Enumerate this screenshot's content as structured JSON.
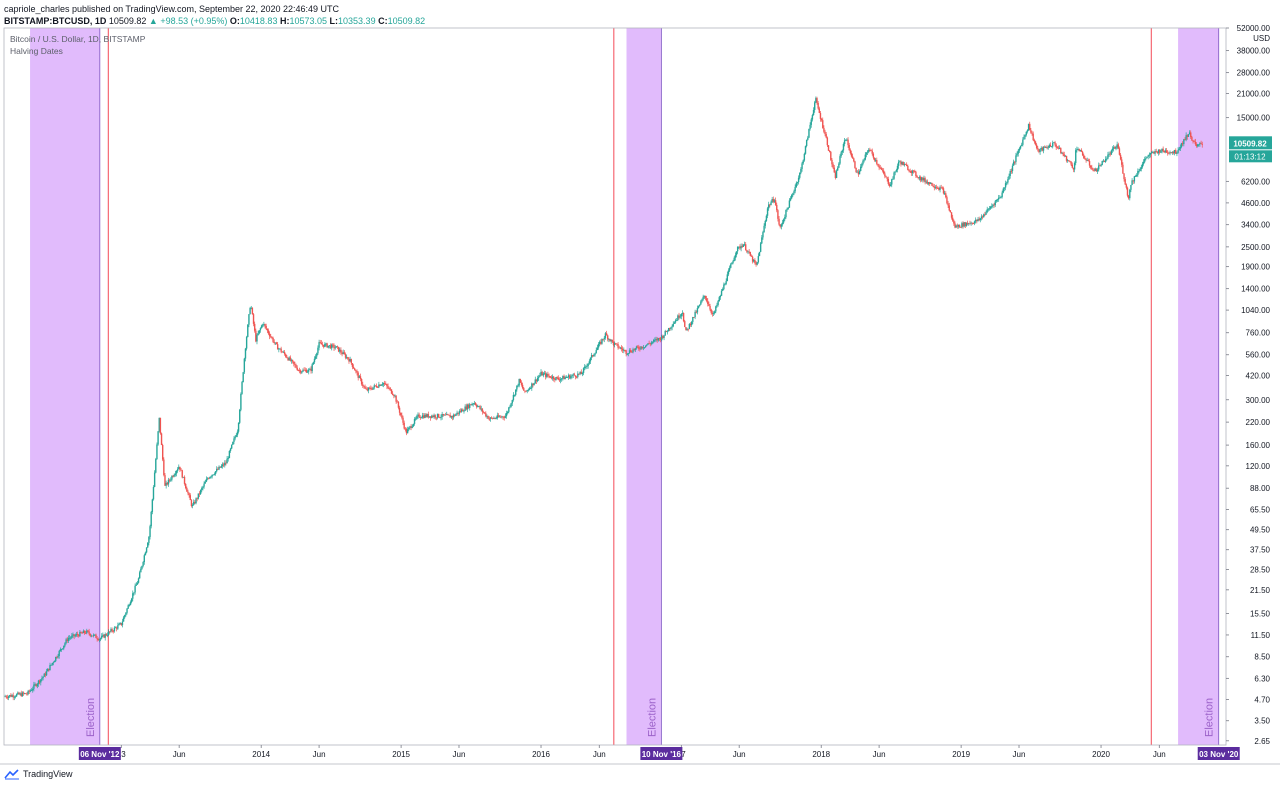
{
  "header": {
    "line1": "capriole_charles published on TradingView.com, September 22, 2020 22:46:49 UTC",
    "symbol": "BITSTAMP:BTCUSD, 1D",
    "last": "10509.82",
    "change": "▲ +98.53 (+0.95%)",
    "o_label": "O:",
    "o_val": "10418.83",
    "h_label": "H:",
    "h_val": "10573.05",
    "l_label": "L:",
    "l_val": "10353.39",
    "c_label": "C:",
    "c_val": "10509.82"
  },
  "legend": {
    "title": "Bitcoin / U.S. Dollar, 1D, BITSTAMP",
    "indicator": "Halving Dates"
  },
  "footer": {
    "brand": "TradingView"
  },
  "colors": {
    "up": "#26a69a",
    "down": "#ef5350",
    "band": "#e1bbfc",
    "halving_line": "#f23645",
    "date_label_bg": "#5b2c9e",
    "price_label_bg": "#26a69a"
  },
  "chart_data": {
    "type": "line",
    "scale": "log",
    "currency": "USD",
    "ylim": [
      2.5,
      52000
    ],
    "xlim": [
      "2012-03-01",
      "2020-11-22"
    ],
    "y_ticks": [
      "52000.00",
      "38000.00",
      "28000.00",
      "21000.00",
      "15000.00",
      "6200.00",
      "4600.00",
      "3400.00",
      "2500.00",
      "1900.00",
      "1400.00",
      "1040.00",
      "760.00",
      "560.00",
      "420.00",
      "300.00",
      "220.00",
      "160.00",
      "120.00",
      "88.00",
      "65.50",
      "49.50",
      "37.50",
      "28.50",
      "21.50",
      "15.50",
      "11.50",
      "8.50",
      "6.30",
      "4.70",
      "3.50",
      "2.65"
    ],
    "x_ticks": [
      {
        "date": "2013-01-01",
        "label": "13"
      },
      {
        "date": "2013-06-01",
        "label": "Jun"
      },
      {
        "date": "2014-01-01",
        "label": "2014"
      },
      {
        "date": "2014-06-01",
        "label": "Jun"
      },
      {
        "date": "2015-01-01",
        "label": "2015"
      },
      {
        "date": "2015-06-01",
        "label": "Jun"
      },
      {
        "date": "2016-01-01",
        "label": "2016"
      },
      {
        "date": "2016-06-01",
        "label": "Jun"
      },
      {
        "date": "2017-01-01",
        "label": "17"
      },
      {
        "date": "2017-06-01",
        "label": "Jun"
      },
      {
        "date": "2018-01-01",
        "label": "2018"
      },
      {
        "date": "2018-06-01",
        "label": "Jun"
      },
      {
        "date": "2019-01-01",
        "label": "2019"
      },
      {
        "date": "2019-06-01",
        "label": "Jun"
      },
      {
        "date": "2020-01-01",
        "label": "2020"
      },
      {
        "date": "2020-06-01",
        "label": "Jun"
      }
    ],
    "unit_label": "USD",
    "last_price": "10509.82",
    "countdown": "01:13:12",
    "halving_dates": [
      "2012-11-28",
      "2016-07-09",
      "2020-05-11"
    ],
    "election_bands": [
      {
        "start": "2012-05-08",
        "end": "2012-11-06",
        "label": "Election",
        "date_label": "06 Nov '12"
      },
      {
        "start": "2016-08-11",
        "end": "2016-11-10",
        "label": "Election",
        "date_label": "10 Nov '16"
      },
      {
        "start": "2020-07-20",
        "end": "2020-11-03",
        "label": "Election",
        "date_label": "03 Nov '20"
      }
    ],
    "series": [
      {
        "x": [
          "2012-03-01",
          "2012-05-01",
          "2012-06-15",
          "2012-08-15",
          "2012-10-01",
          "2012-11-06",
          "2013-01-01",
          "2013-02-15",
          "2013-03-15",
          "2013-04-10",
          "2013-04-25",
          "2013-06-01",
          "2013-07-05",
          "2013-08-15",
          "2013-10-01",
          "2013-11-01",
          "2013-11-20",
          "2013-12-04",
          "2013-12-18",
          "2014-01-05",
          "2014-02-10",
          "2014-03-01",
          "2014-04-10",
          "2014-05-10",
          "2014-06-01",
          "2014-07-15",
          "2014-08-20",
          "2014-10-01",
          "2014-11-15",
          "2014-12-15",
          "2015-01-14",
          "2015-02-15",
          "2015-04-01",
          "2015-05-15",
          "2015-07-10",
          "2015-08-20",
          "2015-10-01",
          "2015-11-05",
          "2015-11-20",
          "2016-01-01",
          "2016-02-15",
          "2016-04-15",
          "2016-06-17",
          "2016-07-09",
          "2016-08-11",
          "2016-10-01",
          "2016-11-10",
          "2017-01-04",
          "2017-01-12",
          "2017-03-03",
          "2017-03-25",
          "2017-05-25",
          "2017-06-12",
          "2017-07-16",
          "2017-08-15",
          "2017-09-01",
          "2017-09-15",
          "2017-11-08",
          "2017-12-17",
          "2018-01-15",
          "2018-02-06",
          "2018-03-05",
          "2018-04-06",
          "2018-05-05",
          "2018-06-29",
          "2018-07-24",
          "2018-09-15",
          "2018-11-15",
          "2018-12-15",
          "2019-02-15",
          "2019-04-15",
          "2019-06-26",
          "2019-07-20",
          "2019-09-01",
          "2019-10-23",
          "2019-10-28",
          "2019-12-15",
          "2020-02-13",
          "2020-03-12",
          "2020-03-20",
          "2020-04-30",
          "2020-06-01",
          "2020-07-15",
          "2020-08-17",
          "2020-09-05",
          "2020-09-22"
        ],
        "y": [
          4.9,
          5.1,
          6.6,
          11,
          12,
          10.9,
          13.4,
          25,
          46,
          230,
          90,
          120,
          68,
          102,
          125,
          200,
          600,
          1150,
          690,
          870,
          630,
          570,
          450,
          450,
          650,
          620,
          520,
          340,
          380,
          320,
          190,
          240,
          240,
          238,
          290,
          230,
          240,
          390,
          330,
          430,
          400,
          430,
          740,
          650,
          580,
          640,
          710,
          1020,
          760,
          1280,
          960,
          2400,
          2600,
          1900,
          4400,
          4900,
          3200,
          7100,
          19500,
          11000,
          6500,
          11500,
          6800,
          9800,
          5900,
          8200,
          6500,
          5500,
          3300,
          3600,
          5100,
          13500,
          9400,
          10500,
          7400,
          10100,
          7100,
          10300,
          4900,
          6100,
          8800,
          9500,
          9300,
          12200,
          10000,
          10509.82
        ]
      }
    ]
  }
}
